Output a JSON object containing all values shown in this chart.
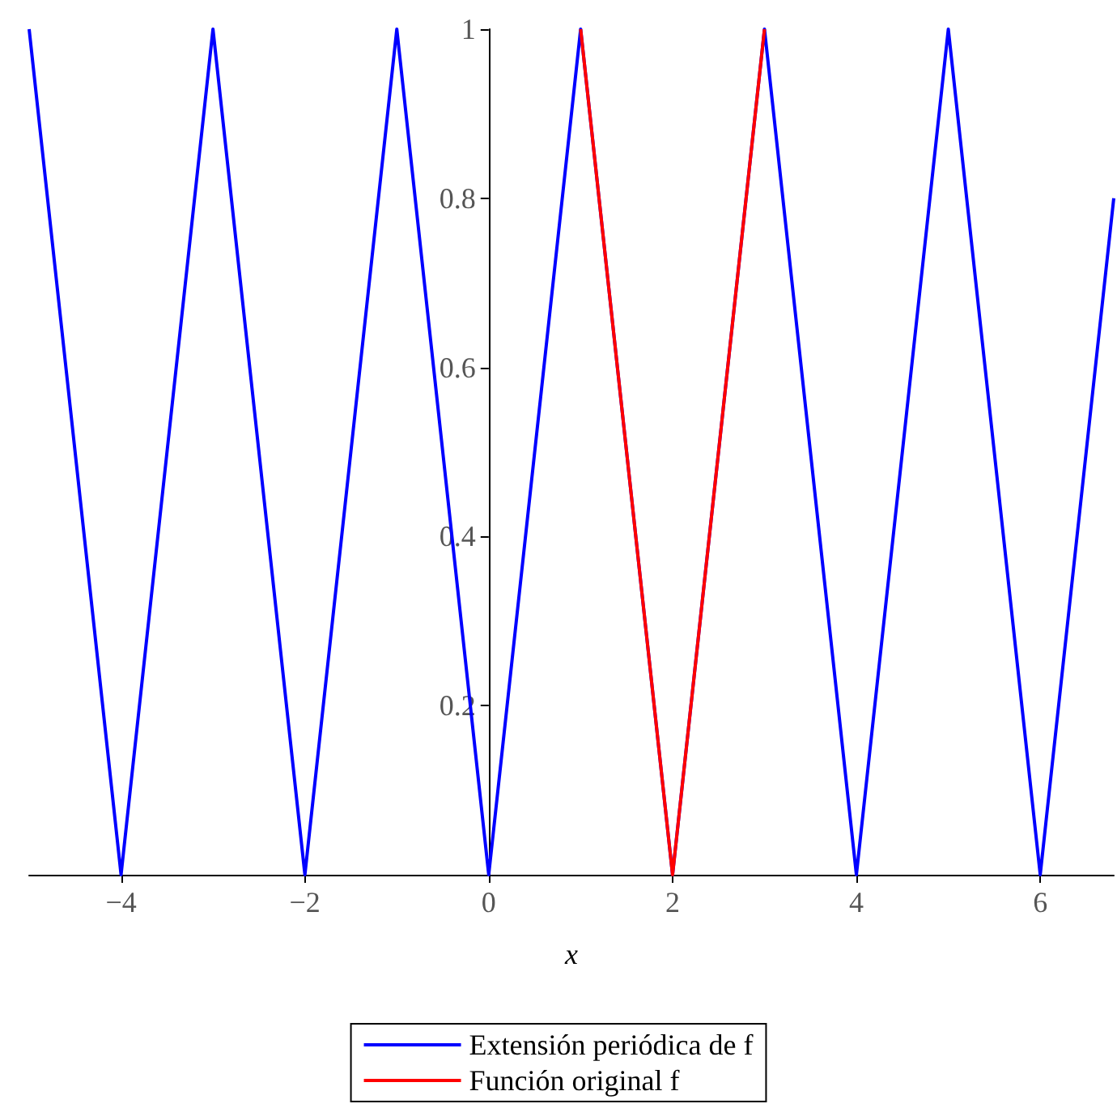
{
  "chart_data": {
    "type": "line",
    "xlabel": "x",
    "xlim": [
      -5,
      6.8
    ],
    "xticks": [
      {
        "value": -4,
        "label": "−4"
      },
      {
        "value": -2,
        "label": "−2"
      },
      0,
      2,
      4,
      6
    ],
    "ylim": [
      0,
      1
    ],
    "yticks": [
      {
        "value": 0,
        "label": null
      },
      0.2,
      0.4,
      0.6,
      0.8,
      1
    ],
    "series": [
      {
        "name": "Extensión periódica de f",
        "color": "#0000ff",
        "x": [
          -5,
          -4,
          -3,
          -2,
          -1,
          0,
          1,
          2,
          3,
          4,
          5,
          6,
          6.8
        ],
        "values": [
          1,
          0,
          1,
          0,
          1,
          0,
          1,
          0,
          1,
          0,
          1,
          0,
          0.8
        ]
      },
      {
        "name": "Función original f",
        "color": "#ff0000",
        "x": [
          1,
          2,
          3
        ],
        "values": [
          1,
          0,
          1
        ]
      }
    ],
    "legend": "bottom",
    "marker": "none",
    "line_style": "solid"
  }
}
